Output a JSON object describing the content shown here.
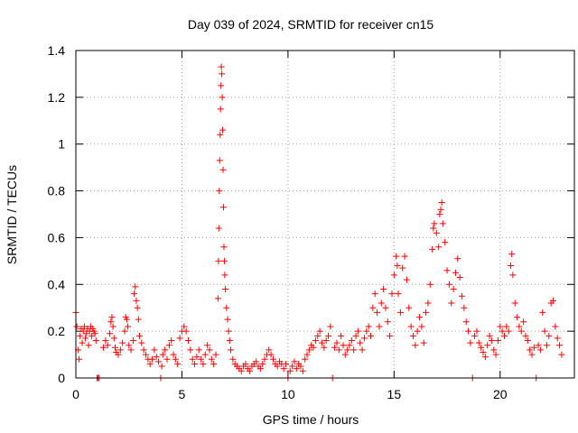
{
  "chart_data": {
    "type": "scatter",
    "title": "Day 039 of 2024, SRMTID for receiver cn15",
    "xlabel": "GPS time / hours",
    "ylabel": "SRMTID / TECUs",
    "xlim": [
      0,
      23.5
    ],
    "ylim": [
      0,
      1.4
    ],
    "x_ticks": [
      0,
      5,
      10,
      15,
      20
    ],
    "x_tick_labels": [
      "0",
      "5",
      "10",
      "15",
      "20"
    ],
    "y_ticks": [
      0,
      0.2,
      0.4,
      0.6,
      0.8,
      1.0,
      1.2,
      1.4
    ],
    "y_tick_labels": [
      "0",
      "0.2",
      "0.4",
      "0.6",
      "0.8",
      "1",
      "1.2",
      "1.4"
    ],
    "grid": true,
    "marker": "+",
    "series": [
      {
        "name": "SRMTID",
        "color": "#ff0000",
        "points": [
          [
            0.0,
            0.28
          ],
          [
            0.05,
            0.22
          ],
          [
            0.1,
            0.12
          ],
          [
            0.15,
            0.08
          ],
          [
            0.2,
            0.18
          ],
          [
            0.25,
            0.21
          ],
          [
            0.3,
            0.15
          ],
          [
            0.35,
            0.2
          ],
          [
            0.4,
            0.22
          ],
          [
            0.45,
            0.17
          ],
          [
            0.5,
            0.19
          ],
          [
            0.55,
            0.21
          ],
          [
            0.6,
            0.14
          ],
          [
            0.65,
            0.2
          ],
          [
            0.7,
            0.22
          ],
          [
            0.75,
            0.18
          ],
          [
            0.8,
            0.21
          ],
          [
            0.85,
            0.2
          ],
          [
            0.9,
            0.19
          ],
          [
            0.95,
            0.16
          ],
          [
            1.0,
            0.0
          ],
          [
            1.05,
            0.0
          ],
          [
            1.1,
            0.0
          ],
          [
            1.3,
            0.13
          ],
          [
            1.4,
            0.16
          ],
          [
            1.5,
            0.14
          ],
          [
            1.6,
            0.19
          ],
          [
            1.65,
            0.24
          ],
          [
            1.7,
            0.26
          ],
          [
            1.75,
            0.22
          ],
          [
            1.8,
            0.17
          ],
          [
            1.85,
            0.13
          ],
          [
            1.9,
            0.11
          ],
          [
            2.0,
            0.1
          ],
          [
            2.1,
            0.12
          ],
          [
            2.2,
            0.15
          ],
          [
            2.3,
            0.2
          ],
          [
            2.35,
            0.26
          ],
          [
            2.4,
            0.25
          ],
          [
            2.45,
            0.22
          ],
          [
            2.5,
            0.14
          ],
          [
            2.6,
            0.12
          ],
          [
            2.7,
            0.16
          ],
          [
            2.75,
            0.36
          ],
          [
            2.8,
            0.39
          ],
          [
            2.85,
            0.33
          ],
          [
            2.9,
            0.3
          ],
          [
            2.95,
            0.25
          ],
          [
            3.0,
            0.18
          ],
          [
            3.1,
            0.15
          ],
          [
            3.2,
            0.12
          ],
          [
            3.3,
            0.1
          ],
          [
            3.4,
            0.08
          ],
          [
            3.5,
            0.06
          ],
          [
            3.6,
            0.08
          ],
          [
            3.7,
            0.12
          ],
          [
            3.8,
            0.09
          ],
          [
            3.9,
            0.07
          ],
          [
            4.0,
            0.0
          ],
          [
            4.05,
            0.05
          ],
          [
            4.1,
            0.1
          ],
          [
            4.2,
            0.12
          ],
          [
            4.3,
            0.08
          ],
          [
            4.4,
            0.14
          ],
          [
            4.5,
            0.16
          ],
          [
            4.6,
            0.1
          ],
          [
            4.7,
            0.08
          ],
          [
            4.8,
            0.06
          ],
          [
            4.9,
            0.17
          ],
          [
            5.0,
            0.2
          ],
          [
            5.1,
            0.22
          ],
          [
            5.2,
            0.2
          ],
          [
            5.3,
            0.16
          ],
          [
            5.4,
            0.12
          ],
          [
            5.5,
            0.08
          ],
          [
            5.6,
            0.06
          ],
          [
            5.7,
            0.09
          ],
          [
            5.8,
            0.12
          ],
          [
            5.9,
            0.08
          ],
          [
            6.0,
            0.06
          ],
          [
            6.1,
            0.1
          ],
          [
            6.2,
            0.14
          ],
          [
            6.3,
            0.12
          ],
          [
            6.4,
            0.08
          ],
          [
            6.5,
            0.06
          ],
          [
            6.6,
            0.1
          ],
          [
            6.7,
            0.34
          ],
          [
            6.72,
            0.5
          ],
          [
            6.74,
            0.64
          ],
          [
            6.76,
            0.8
          ],
          [
            6.78,
            0.93
          ],
          [
            6.8,
            1.04
          ],
          [
            6.82,
            1.15
          ],
          [
            6.84,
            1.25
          ],
          [
            6.86,
            1.33
          ],
          [
            6.88,
            1.3
          ],
          [
            6.9,
            1.2
          ],
          [
            6.92,
            1.06
          ],
          [
            6.94,
            0.89
          ],
          [
            6.96,
            0.73
          ],
          [
            6.98,
            0.56
          ],
          [
            7.0,
            0.5
          ],
          [
            7.02,
            0.44
          ],
          [
            7.05,
            0.38
          ],
          [
            7.1,
            0.3
          ],
          [
            7.15,
            0.25
          ],
          [
            7.2,
            0.2
          ],
          [
            7.25,
            0.16
          ],
          [
            7.3,
            0.12
          ],
          [
            7.4,
            0.08
          ],
          [
            7.5,
            0.06
          ],
          [
            7.6,
            0.05
          ],
          [
            7.7,
            0.04
          ],
          [
            7.8,
            0.03
          ],
          [
            7.9,
            0.05
          ],
          [
            8.0,
            0.06
          ],
          [
            8.1,
            0.04
          ],
          [
            8.2,
            0.03
          ],
          [
            8.3,
            0.05
          ],
          [
            8.4,
            0.06
          ],
          [
            8.5,
            0.07
          ],
          [
            8.6,
            0.05
          ],
          [
            8.7,
            0.04
          ],
          [
            8.8,
            0.06
          ],
          [
            8.9,
            0.08
          ],
          [
            9.0,
            0.1
          ],
          [
            9.1,
            0.12
          ],
          [
            9.2,
            0.1
          ],
          [
            9.3,
            0.08
          ],
          [
            9.4,
            0.06
          ],
          [
            9.5,
            0.05
          ],
          [
            9.6,
            0.07
          ],
          [
            9.7,
            0.06
          ],
          [
            9.8,
            0.04
          ],
          [
            9.9,
            0.06
          ],
          [
            10.0,
            0.0
          ],
          [
            10.1,
            0.03
          ],
          [
            10.2,
            0.05
          ],
          [
            10.3,
            0.07
          ],
          [
            10.4,
            0.04
          ],
          [
            10.5,
            0.06
          ],
          [
            10.6,
            0.05
          ],
          [
            10.7,
            0.03
          ],
          [
            10.8,
            0.08
          ],
          [
            10.9,
            0.1
          ],
          [
            11.0,
            0.12
          ],
          [
            11.1,
            0.14
          ],
          [
            11.2,
            0.13
          ],
          [
            11.3,
            0.16
          ],
          [
            11.4,
            0.18
          ],
          [
            11.5,
            0.2
          ],
          [
            11.6,
            0.15
          ],
          [
            11.7,
            0.13
          ],
          [
            11.8,
            0.16
          ],
          [
            11.9,
            0.18
          ],
          [
            12.0,
            0.22
          ],
          [
            12.1,
            0.0
          ],
          [
            12.2,
            0.13
          ],
          [
            12.3,
            0.15
          ],
          [
            12.4,
            0.12
          ],
          [
            12.5,
            0.18
          ],
          [
            12.6,
            0.14
          ],
          [
            12.7,
            0.1
          ],
          [
            12.8,
            0.12
          ],
          [
            12.9,
            0.14
          ],
          [
            13.0,
            0.16
          ],
          [
            13.1,
            0.12
          ],
          [
            13.2,
            0.18
          ],
          [
            13.3,
            0.2
          ],
          [
            13.4,
            0.15
          ],
          [
            13.5,
            0.12
          ],
          [
            13.6,
            0.17
          ],
          [
            13.7,
            0.2
          ],
          [
            13.8,
            0.22
          ],
          [
            13.9,
            0.18
          ],
          [
            14.0,
            0.3
          ],
          [
            14.1,
            0.36
          ],
          [
            14.2,
            0.28
          ],
          [
            14.3,
            0.22
          ],
          [
            14.4,
            0.32
          ],
          [
            14.5,
            0.38
          ],
          [
            14.6,
            0.3
          ],
          [
            14.7,
            0.24
          ],
          [
            14.8,
            0.18
          ],
          [
            14.9,
            0.36
          ],
          [
            15.0,
            0.44
          ],
          [
            15.1,
            0.52
          ],
          [
            15.15,
            0.48
          ],
          [
            15.2,
            0.36
          ],
          [
            15.3,
            0.28
          ],
          [
            15.4,
            0.47
          ],
          [
            15.5,
            0.52
          ],
          [
            15.6,
            0.42
          ],
          [
            15.7,
            0.3
          ],
          [
            15.8,
            0.22
          ],
          [
            15.9,
            0.18
          ],
          [
            16.0,
            0.14
          ],
          [
            16.1,
            0.2
          ],
          [
            16.2,
            0.26
          ],
          [
            16.3,
            0.22
          ],
          [
            16.4,
            0.15
          ],
          [
            16.5,
            0.28
          ],
          [
            16.6,
            0.32
          ],
          [
            16.7,
            0.4
          ],
          [
            16.8,
            0.55
          ],
          [
            16.85,
            0.64
          ],
          [
            16.9,
            0.66
          ],
          [
            17.0,
            0.62
          ],
          [
            17.1,
            0.56
          ],
          [
            17.15,
            0.7
          ],
          [
            17.2,
            0.72
          ],
          [
            17.25,
            0.75
          ],
          [
            17.3,
            0.66
          ],
          [
            17.4,
            0.58
          ],
          [
            17.5,
            0.46
          ],
          [
            17.6,
            0.4
          ],
          [
            17.7,
            0.32
          ],
          [
            17.8,
            0.38
          ],
          [
            17.9,
            0.45
          ],
          [
            18.0,
            0.51
          ],
          [
            18.1,
            0.43
          ],
          [
            18.2,
            0.35
          ],
          [
            18.3,
            0.3
          ],
          [
            18.4,
            0.24
          ],
          [
            18.5,
            0.2
          ],
          [
            18.6,
            0.15
          ],
          [
            18.7,
            0.0
          ],
          [
            18.8,
            0.18
          ],
          [
            18.9,
            0.2
          ],
          [
            19.0,
            0.15
          ],
          [
            19.1,
            0.13
          ],
          [
            19.2,
            0.11
          ],
          [
            19.3,
            0.09
          ],
          [
            19.4,
            0.14
          ],
          [
            19.5,
            0.18
          ],
          [
            19.6,
            0.16
          ],
          [
            19.7,
            0.12
          ],
          [
            19.8,
            0.1
          ],
          [
            19.9,
            0.16
          ],
          [
            20.0,
            0.22
          ],
          [
            20.1,
            0.2
          ],
          [
            20.2,
            0.18
          ],
          [
            20.3,
            0.22
          ],
          [
            20.4,
            0.2
          ],
          [
            20.5,
            0.48
          ],
          [
            20.55,
            0.53
          ],
          [
            20.6,
            0.44
          ],
          [
            20.7,
            0.32
          ],
          [
            20.8,
            0.26
          ],
          [
            20.9,
            0.22
          ],
          [
            21.0,
            0.2
          ],
          [
            21.1,
            0.24
          ],
          [
            21.2,
            0.18
          ],
          [
            21.3,
            0.16
          ],
          [
            21.4,
            0.12
          ],
          [
            21.5,
            0.1
          ],
          [
            21.6,
            0.13
          ],
          [
            21.7,
            0.0
          ],
          [
            21.8,
            0.14
          ],
          [
            21.9,
            0.12
          ],
          [
            22.0,
            0.28
          ],
          [
            22.1,
            0.2
          ],
          [
            22.2,
            0.14
          ],
          [
            22.3,
            0.18
          ],
          [
            22.4,
            0.32
          ],
          [
            22.5,
            0.33
          ],
          [
            22.6,
            0.22
          ],
          [
            22.7,
            0.17
          ],
          [
            22.8,
            0.14
          ],
          [
            22.9,
            0.1
          ]
        ]
      }
    ]
  }
}
